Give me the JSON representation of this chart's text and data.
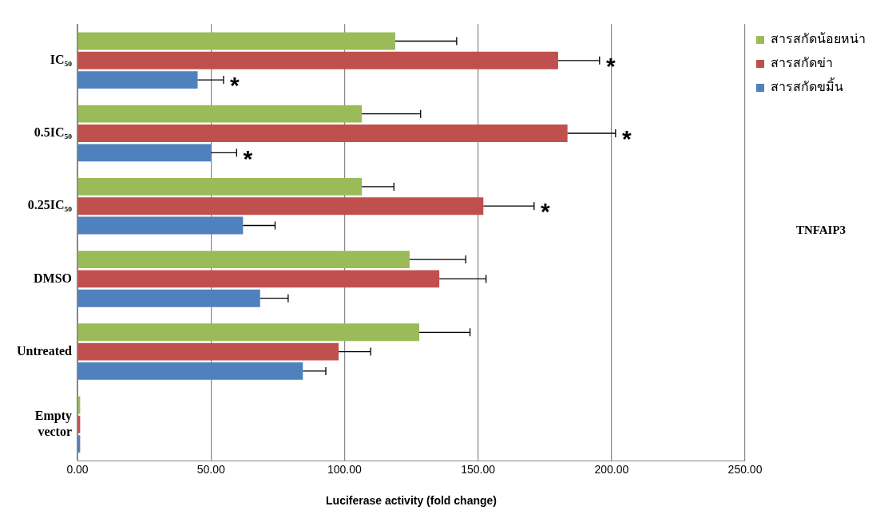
{
  "chart_data": {
    "type": "bar",
    "orientation": "horizontal",
    "categories": [
      "IC₅₀",
      "0.5IC₅₀",
      "0.25IC₅₀",
      "DMSO",
      "Untreated",
      "Empty vector"
    ],
    "series": [
      {
        "name": "สารสกัดน้อยหน่า",
        "color": "#9bbb59",
        "values": [
          119,
          106.5,
          106.5,
          124.4,
          128,
          1
        ],
        "errors": [
          23,
          22,
          12,
          21,
          19,
          null
        ]
      },
      {
        "name": "สารสกัดข่า",
        "color": "#c0504d",
        "values": [
          180,
          183.5,
          152,
          135.5,
          97.8,
          1
        ],
        "errors": [
          15.5,
          18,
          19,
          17.5,
          12,
          null
        ]
      },
      {
        "name": "สารสกัดขมิ้น",
        "color": "#4f81bd",
        "values": [
          45,
          50,
          62,
          68.4,
          84.4,
          1
        ],
        "errors": [
          9.7,
          9.6,
          12,
          10.5,
          8.6,
          null
        ]
      }
    ],
    "xlim": [
      0,
      250
    ],
    "xticks": [
      {
        "value": 0,
        "label": "0.00"
      },
      {
        "value": 50,
        "label": "50.00"
      },
      {
        "value": 100,
        "label": "100.00"
      },
      {
        "value": 150,
        "label": "150.00"
      },
      {
        "value": 200,
        "label": "200.00"
      },
      {
        "value": 250,
        "label": "250.00"
      }
    ],
    "xlabel": "Luciferase activity (fold change)",
    "grid": "x",
    "legend": "top right",
    "annotations": [
      {
        "text": "*",
        "x": 180,
        "y": "IC₅₀"
      },
      {
        "text": "*",
        "x": 45
      },
      {
        "text": "*",
        "x": 183.5,
        "y": "0.5IC₅₀"
      },
      {
        "text": "*",
        "x": 50
      },
      {
        "text": "*",
        "x": 152,
        "y": "0.25IC₅₀"
      },
      "TNFAIP3"
    ]
  }
}
